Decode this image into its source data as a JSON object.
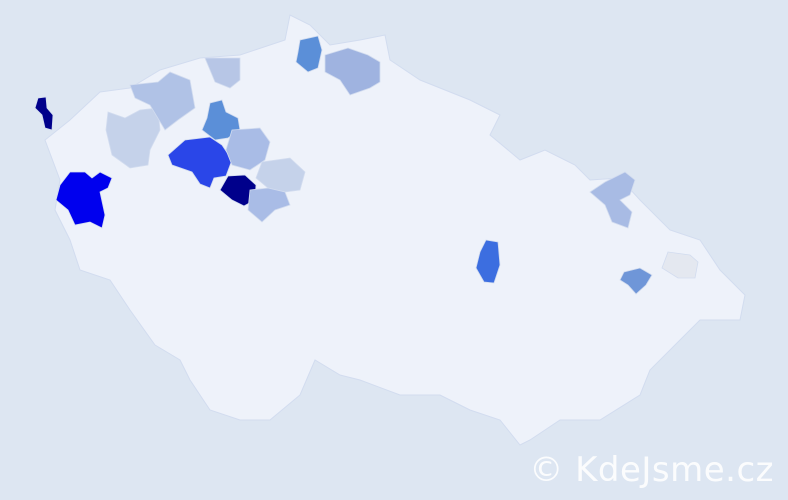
{
  "map": {
    "background_color": "#dde6f2",
    "base_region_color": "#eef2fa",
    "border_color": "#d2dcef",
    "highlighted_regions": [
      {
        "color": "#00008b"
      },
      {
        "color": "#0000ee"
      },
      {
        "color": "#2a46e8"
      },
      {
        "color": "#00008b"
      },
      {
        "color": "#5b8fd8"
      },
      {
        "color": "#5b8fd8"
      },
      {
        "color": "#9fb3e0"
      },
      {
        "color": "#3c6ee0"
      },
      {
        "color": "#6f96d8"
      },
      {
        "color": "#a8bbe4"
      },
      {
        "color": "#e4e8f0"
      },
      {
        "color": "#c5d2ea"
      },
      {
        "color": "#b0c2e6"
      },
      {
        "color": "#b7c6e6"
      },
      {
        "color": "#a9bce6"
      },
      {
        "color": "#c5d2ea"
      },
      {
        "color": "#a9bce6"
      }
    ]
  },
  "watermark": "© KdeJsme.cz"
}
